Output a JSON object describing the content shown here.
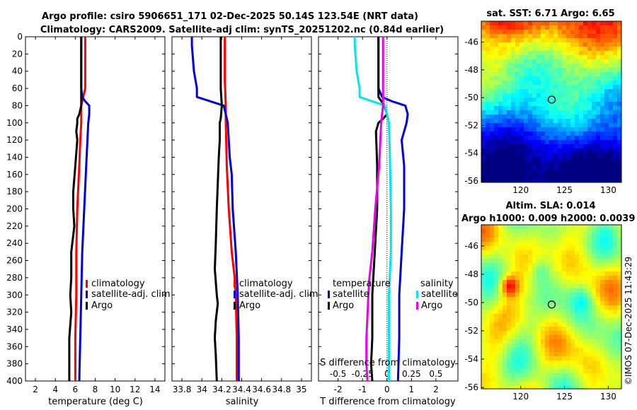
{
  "header": {
    "title_line1": "Argo profile: csiro 5906651_171 02-Dec-2025 50.14S 123.54E (NRT data)",
    "title_line2": "Climatology: CARS2009. Satellite-adj clim: synTS_20251202.nc (0.84d earlier)"
  },
  "colors": {
    "climatology": "#ff0000",
    "satellite": "#0000dd",
    "argo": "#000000",
    "sat_salinity": "#00e5ee",
    "argo_salinity": "#ee00ee"
  },
  "credit": "©IMOS 07-Dec-2025 11:43:29",
  "chart_data": [
    {
      "type": "line",
      "id": "temperature",
      "xlabel": "temperature (deg C)",
      "ylabel": "",
      "xlim": [
        1,
        15
      ],
      "ylim": [
        400,
        0
      ],
      "xticks": [
        "2",
        "4",
        "6",
        "8",
        "10",
        "12",
        "14"
      ],
      "yticks": [
        "0",
        "20",
        "40",
        "60",
        "80",
        "100",
        "120",
        "140",
        "160",
        "180",
        "200",
        "220",
        "240",
        "260",
        "280",
        "300",
        "320",
        "340",
        "360",
        "380",
        "400"
      ],
      "legend": [
        "climatology",
        "satellite-adj. clim",
        "Argo"
      ],
      "series": [
        {
          "name": "climatology",
          "depth": [
            0,
            20,
            40,
            60,
            70,
            80,
            100,
            120,
            150,
            200,
            250,
            300,
            350,
            400
          ],
          "values": [
            7.0,
            7.0,
            7.0,
            7.0,
            6.8,
            6.6,
            6.6,
            6.5,
            6.4,
            6.2,
            6.1,
            6.1,
            6.0,
            6.0
          ]
        },
        {
          "name": "satellite-adj. clim",
          "depth": [
            0,
            20,
            40,
            60,
            70,
            75,
            80,
            90,
            100,
            150,
            200,
            250,
            300,
            350,
            400
          ],
          "values": [
            6.6,
            6.6,
            6.6,
            6.6,
            6.7,
            7.0,
            7.4,
            7.4,
            7.3,
            7.1,
            6.9,
            6.7,
            6.6,
            6.5,
            6.4
          ]
        },
        {
          "name": "Argo",
          "depth": [
            0,
            80,
            90,
            95,
            100,
            110,
            120,
            150,
            180,
            200,
            220,
            250,
            280,
            300,
            320,
            350,
            380,
            400
          ],
          "values": [
            6.6,
            6.6,
            6.4,
            6.2,
            6.2,
            6.1,
            6.2,
            6.0,
            5.8,
            5.8,
            5.9,
            5.6,
            5.6,
            5.5,
            5.6,
            5.4,
            5.4,
            5.4
          ]
        }
      ]
    },
    {
      "type": "line",
      "id": "salinity",
      "xlabel": "salinity",
      "xlim": [
        33.7,
        35.1
      ],
      "ylim": [
        400,
        0
      ],
      "xticks": [
        "33.8",
        "34",
        "34.2",
        "34.4",
        "34.6",
        "34.8",
        "35"
      ],
      "legend": [
        "climatology",
        "satellite-adj. clim",
        "Argo"
      ],
      "series": [
        {
          "name": "climatology",
          "depth": [
            0,
            50,
            80,
            100,
            150,
            200,
            250,
            280,
            300,
            350,
            400
          ],
          "values": [
            34.23,
            34.23,
            34.24,
            34.24,
            34.25,
            34.27,
            34.3,
            34.33,
            34.34,
            34.35,
            34.35
          ]
        },
        {
          "name": "satellite-adj. clim",
          "depth": [
            0,
            10,
            40,
            60,
            70,
            80,
            100,
            140,
            160,
            200,
            250,
            300,
            350,
            400
          ],
          "values": [
            33.9,
            33.9,
            33.92,
            33.95,
            33.95,
            34.22,
            34.26,
            34.28,
            34.3,
            34.31,
            34.34,
            34.36,
            34.37,
            34.37
          ]
        },
        {
          "name": "Argo",
          "depth": [
            0,
            60,
            80,
            95,
            100,
            120,
            140,
            170,
            200,
            240,
            270,
            300,
            310,
            320,
            330,
            350,
            370,
            400
          ],
          "values": [
            34.19,
            34.19,
            34.2,
            34.19,
            34.18,
            34.18,
            34.17,
            34.16,
            34.15,
            34.14,
            34.13,
            34.15,
            34.16,
            34.15,
            34.14,
            34.13,
            34.14,
            34.15
          ]
        }
      ]
    },
    {
      "type": "line",
      "id": "difference",
      "xlabel": "T difference from climatology",
      "xlabel_top": "S difference from climatology",
      "xlim": [
        -2.8,
        2.9
      ],
      "xlim_s": [
        -0.7,
        0.725
      ],
      "ylim": [
        400,
        0
      ],
      "xticks": [
        "-2",
        "-1",
        "0",
        "1",
        "2"
      ],
      "xticks_s": [
        "-0.5",
        "-0.25",
        "0",
        "0.25",
        "0.5"
      ],
      "legend_left_title": "temperature",
      "legend_left": [
        "satellite",
        "Argo"
      ],
      "legend_right_title": "salinity",
      "legend_right": [
        "satellite",
        "Argo"
      ],
      "series": [
        {
          "name": "temperature satellite",
          "depth": [
            0,
            60,
            70,
            75,
            80,
            90,
            100,
            120,
            150,
            200,
            250,
            300,
            350,
            400
          ],
          "values": [
            -0.35,
            -0.35,
            -0.2,
            0.2,
            0.75,
            0.85,
            0.8,
            0.6,
            0.7,
            0.7,
            0.6,
            0.5,
            0.5,
            0.45
          ]
        },
        {
          "name": "temperature Argo",
          "depth": [
            0,
            70,
            80,
            90,
            95,
            100,
            110,
            150,
            200,
            250,
            300,
            350,
            380,
            400
          ],
          "values": [
            -0.35,
            -0.35,
            -0.1,
            0.0,
            -0.15,
            -0.35,
            -0.45,
            -0.4,
            -0.4,
            -0.5,
            -0.6,
            -0.6,
            -0.65,
            -0.6
          ]
        },
        {
          "name": "salinity satellite",
          "depth": [
            0,
            10,
            40,
            60,
            70,
            80,
            100,
            140,
            200,
            250,
            300,
            350,
            400
          ],
          "values": [
            -0.33,
            -0.33,
            -0.31,
            -0.28,
            -0.28,
            -0.02,
            0.02,
            0.03,
            0.04,
            0.04,
            0.02,
            0.02,
            0.02
          ]
        },
        {
          "name": "salinity Argo",
          "depth": [
            0,
            60,
            80,
            100,
            150,
            200,
            250,
            280,
            300,
            350,
            380,
            400
          ],
          "values": [
            -0.04,
            -0.04,
            -0.04,
            -0.06,
            -0.08,
            -0.12,
            -0.15,
            -0.18,
            -0.19,
            -0.21,
            -0.21,
            -0.2
          ]
        }
      ]
    },
    {
      "type": "heatmap",
      "id": "sst_map",
      "title": "sat. SST: 6.71 Argo: 6.65",
      "xticks": [
        "120",
        "125",
        "130"
      ],
      "yticks": [
        "-46",
        "-48",
        "-50",
        "-52",
        "-54",
        "-56"
      ],
      "xlim": [
        115.5,
        131.5
      ],
      "ylim": [
        -56.1,
        -44.5
      ],
      "marker": {
        "lon": 123.54,
        "lat": -50.14
      }
    },
    {
      "type": "heatmap",
      "id": "sla_map",
      "title": "Altim. SLA: 0.014",
      "subtitle": "Argo h1000: 0.009 h2000: 0.0039",
      "xticks": [
        "120",
        "125",
        "130"
      ],
      "yticks": [
        "-46",
        "-48",
        "-50",
        "-52",
        "-54",
        "-56"
      ],
      "xlim": [
        115.5,
        131.5
      ],
      "ylim": [
        -56.1,
        -44.5
      ],
      "marker": {
        "lon": 123.54,
        "lat": -50.14
      }
    }
  ]
}
